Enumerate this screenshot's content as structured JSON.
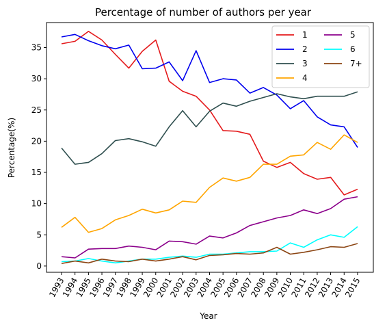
{
  "chart_data": {
    "type": "line",
    "title": "Percentage of number of authors per year",
    "xlabel": "Year",
    "ylabel": "Percentage(%)",
    "x": [
      "1993",
      "1994",
      "1995",
      "1996",
      "1997",
      "1998",
      "1999",
      "2000",
      "2001",
      "2002",
      "2003",
      "2004",
      "2005",
      "2006",
      "2007",
      "2008",
      "2009",
      "2010",
      "2011",
      "2012",
      "2013",
      "2014",
      "2015"
    ],
    "ylim": [
      -1.0,
      39.0
    ],
    "yticks": [
      0,
      5,
      10,
      15,
      20,
      25,
      30,
      35
    ],
    "grid": false,
    "legend": {
      "placement": "top-right",
      "columns": 2
    },
    "series": [
      {
        "name": "1",
        "color": "#e41a1c",
        "values": [
          35.6,
          36.0,
          37.6,
          36.2,
          33.9,
          31.7,
          34.4,
          36.2,
          29.6,
          28.0,
          27.2,
          25.0,
          21.7,
          21.6,
          21.1,
          16.8,
          15.8,
          16.6,
          14.8,
          13.9,
          14.2,
          11.4,
          12.3
        ]
      },
      {
        "name": "2",
        "color": "#0000ee",
        "values": [
          36.7,
          37.1,
          36.1,
          35.3,
          34.8,
          35.4,
          31.6,
          31.7,
          32.7,
          29.7,
          34.5,
          29.4,
          30.0,
          29.8,
          27.7,
          28.6,
          27.4,
          25.2,
          26.5,
          23.9,
          22.6,
          22.3,
          19.0
        ]
      },
      {
        "name": "3",
        "color": "#2f4f4f",
        "values": [
          18.9,
          16.3,
          16.6,
          18.0,
          20.1,
          20.4,
          19.9,
          19.2,
          22.3,
          24.9,
          22.3,
          24.8,
          26.1,
          25.6,
          26.4,
          27.0,
          27.6,
          27.1,
          26.8,
          27.2,
          27.2,
          27.2,
          27.9
        ]
      },
      {
        "name": "4",
        "color": "#ffa500",
        "values": [
          6.2,
          7.8,
          5.4,
          6.0,
          7.4,
          8.1,
          9.1,
          8.5,
          9.0,
          10.4,
          10.2,
          12.6,
          14.1,
          13.6,
          14.2,
          16.3,
          16.3,
          17.6,
          17.8,
          19.8,
          18.7,
          21.0,
          19.8
        ]
      },
      {
        "name": "5",
        "color": "#8b008b",
        "values": [
          1.5,
          1.3,
          2.7,
          2.8,
          2.8,
          3.2,
          3.0,
          2.6,
          4.0,
          3.9,
          3.5,
          4.8,
          4.5,
          5.3,
          6.5,
          7.1,
          7.7,
          8.1,
          9.0,
          8.4,
          9.2,
          10.7,
          11.1
        ]
      },
      {
        "name": "6",
        "color": "#00ffff",
        "values": [
          0.7,
          0.8,
          1.2,
          0.8,
          0.5,
          0.8,
          1.1,
          1.1,
          1.4,
          1.6,
          1.4,
          1.9,
          1.9,
          2.1,
          2.3,
          2.3,
          2.4,
          3.7,
          3.0,
          4.2,
          5.0,
          4.6,
          6.3
        ]
      },
      {
        "name": "7+",
        "color": "#8b4513",
        "values": [
          0.4,
          0.8,
          0.5,
          1.1,
          0.8,
          0.7,
          1.1,
          0.8,
          1.1,
          1.5,
          1.0,
          1.7,
          1.8,
          2.0,
          1.9,
          2.1,
          3.0,
          1.9,
          2.2,
          2.6,
          3.1,
          3.0,
          3.6
        ]
      }
    ]
  }
}
